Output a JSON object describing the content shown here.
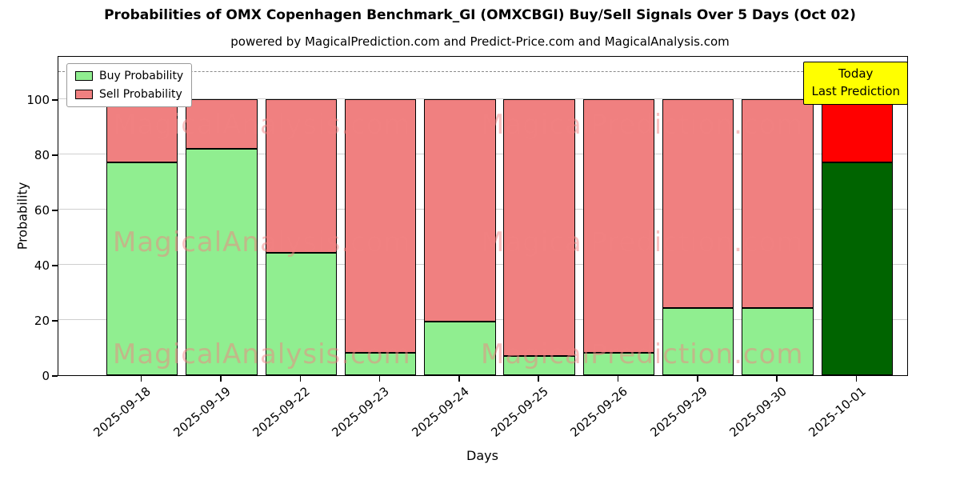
{
  "subtitle": "powered by MagicalPrediction.com and Predict-Price.com and MagicalAnalysis.com",
  "annotation": {
    "line1": "Today",
    "line2": "Last Prediction"
  },
  "watermarks": {
    "left": "MagicalAnalysis.com",
    "right": "MagicalPrediction.com"
  },
  "colors": {
    "buy": "#90ee90",
    "sell": "#f08080",
    "buy_today": "#006400",
    "sell_today": "#ff0000",
    "annotation_bg": "#ffff00",
    "grid": "#cfcfcf",
    "dashed": "#8a8a8a",
    "bar_edge": "#000000"
  },
  "chart_data": {
    "type": "bar",
    "stacked": true,
    "title": "Probabilities of OMX Copenhagen Benchmark_GI (OMXCBGI) Buy/Sell Signals Over 5 Days (Oct 02)",
    "xlabel": "Days",
    "ylabel": "Probability",
    "ylim": [
      0,
      116
    ],
    "yticks": [
      0,
      20,
      40,
      60,
      80,
      100
    ],
    "dashed_line_y": 110,
    "grid": true,
    "legend_position": "upper left",
    "categories": [
      "2025-09-18",
      "2025-09-19",
      "2025-09-22",
      "2025-09-23",
      "2025-09-24",
      "2025-09-25",
      "2025-09-26",
      "2025-09-29",
      "2025-09-30",
      "2025-10-01"
    ],
    "series": [
      {
        "name": "Buy Probability",
        "values": [
          77,
          82,
          44.5,
          8,
          19.5,
          7,
          8,
          24.5,
          24.5,
          77
        ]
      },
      {
        "name": "Sell Probability",
        "values": [
          23,
          18,
          55.5,
          92,
          80.5,
          93,
          92,
          75.5,
          75.5,
          23
        ]
      }
    ],
    "today_bar_index": 9
  }
}
